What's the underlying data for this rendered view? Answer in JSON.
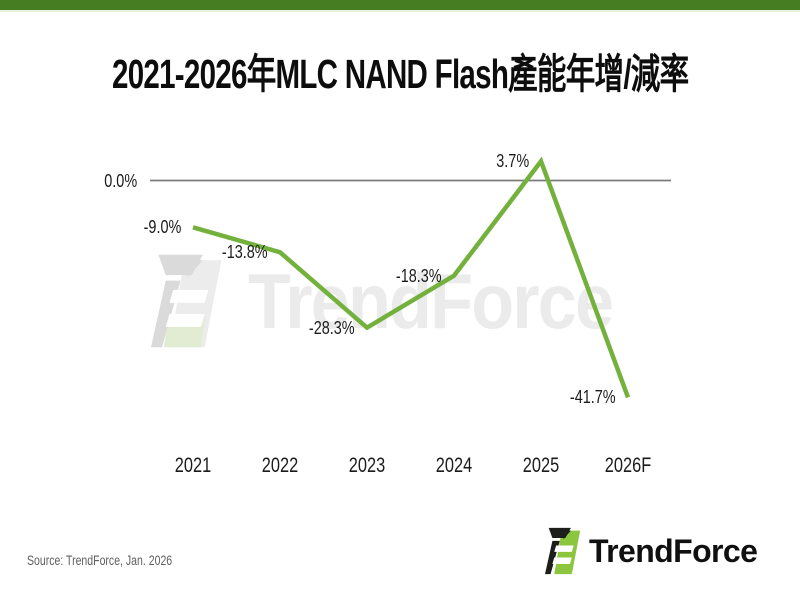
{
  "header": {
    "title": "2021-2026年MLC NAND Flash產能年增/減率"
  },
  "chart_data": {
    "type": "line",
    "title": "2021-2026年MLC NAND Flash產能年增/減率",
    "categories": [
      "2021",
      "2022",
      "2023",
      "2024",
      "2025",
      "2026F"
    ],
    "values": [
      -9.0,
      -13.8,
      -28.3,
      -18.3,
      3.7,
      -41.7
    ],
    "value_labels": [
      "-9.0%",
      "-13.8%",
      "-28.3%",
      "-18.3%",
      "3.7%",
      "-41.7%"
    ],
    "zero_label": "0.0%",
    "xlabel": "",
    "ylabel": "",
    "ylim": [
      -45,
      8
    ],
    "grid": "zero-baseline-only",
    "legend_position": "none",
    "line_color": "#73b13c",
    "zero_line_color": "#7c7c7c"
  },
  "watermark": {
    "text": "TrendForce"
  },
  "footer": {
    "source": "Source: TrendForce, Jan. 2026",
    "logo_text": "TrendForce"
  },
  "colors": {
    "top_bar_green": "#477d22",
    "brand_green": "#8cc63f",
    "line_green": "#73b13c"
  }
}
